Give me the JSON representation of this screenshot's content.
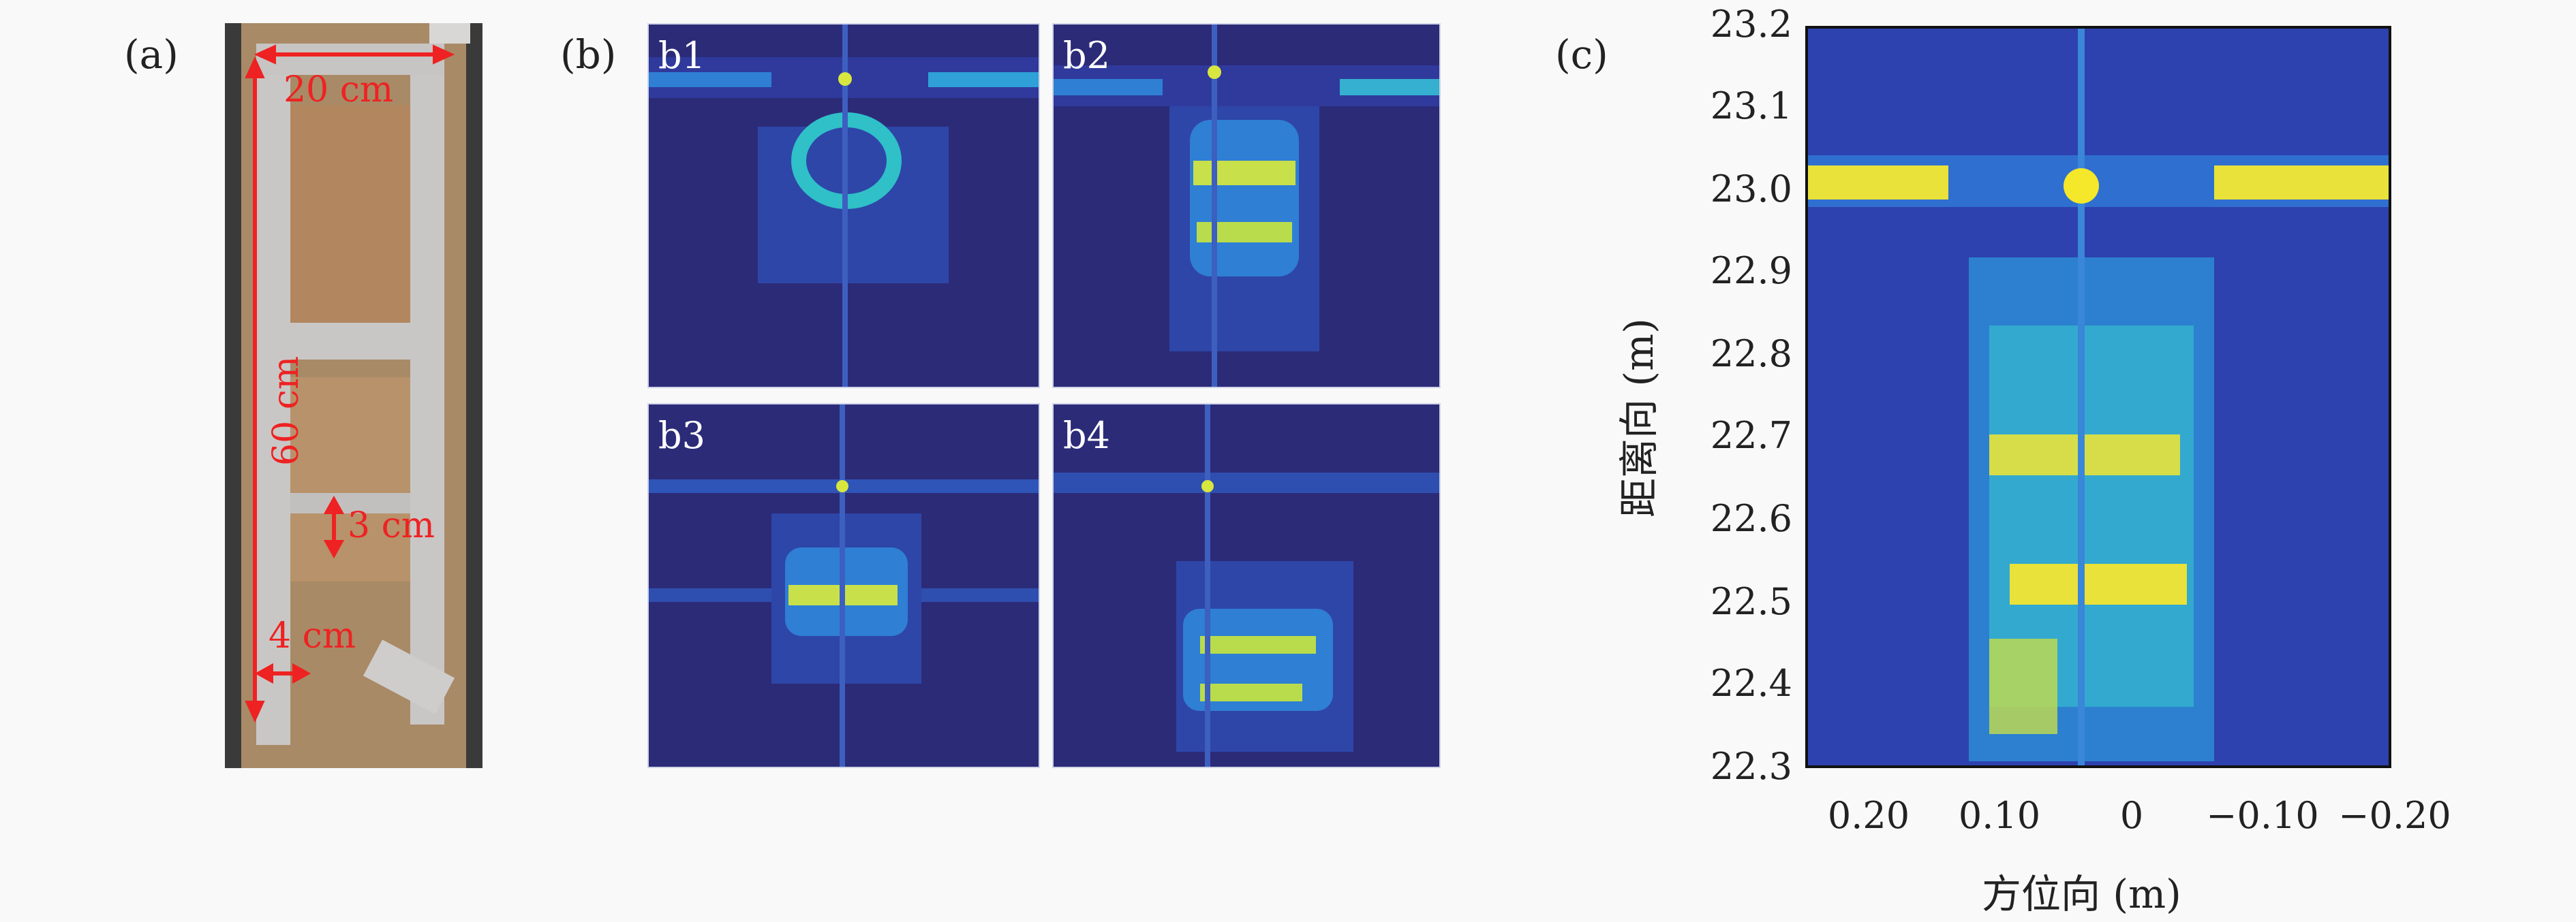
{
  "panels": {
    "a": {
      "label": "(a)",
      "annotations": {
        "width": "20 cm",
        "height": "60 cm",
        "gap": "3 cm",
        "bar": "4 cm"
      }
    },
    "b": {
      "label": "(b)",
      "tiles": [
        "b1",
        "b2",
        "b3",
        "b4"
      ]
    },
    "c": {
      "label": "(c)",
      "xlabel": "方位向 (m)",
      "ylabel": "距离向 (m)",
      "yticks": [
        "23.2",
        "23.1",
        "23.0",
        "22.9",
        "22.8",
        "22.7",
        "22.6",
        "22.5",
        "22.4",
        "22.3"
      ],
      "xticks": [
        "0.20",
        "0.10",
        "0",
        "−0.10",
        "−0.20"
      ]
    }
  },
  "chart_data": {
    "type": "heatmap",
    "title": "",
    "xlabel": "方位向 (m)",
    "ylabel": "距离向 (m)",
    "xlim": [
      0.25,
      -0.2
    ],
    "ylim": [
      22.3,
      23.2
    ],
    "colormap": "parula",
    "colors": {
      "background": "#2b2a7a",
      "mid": "#1f7fd6",
      "high": "#f5e72a"
    }
  }
}
